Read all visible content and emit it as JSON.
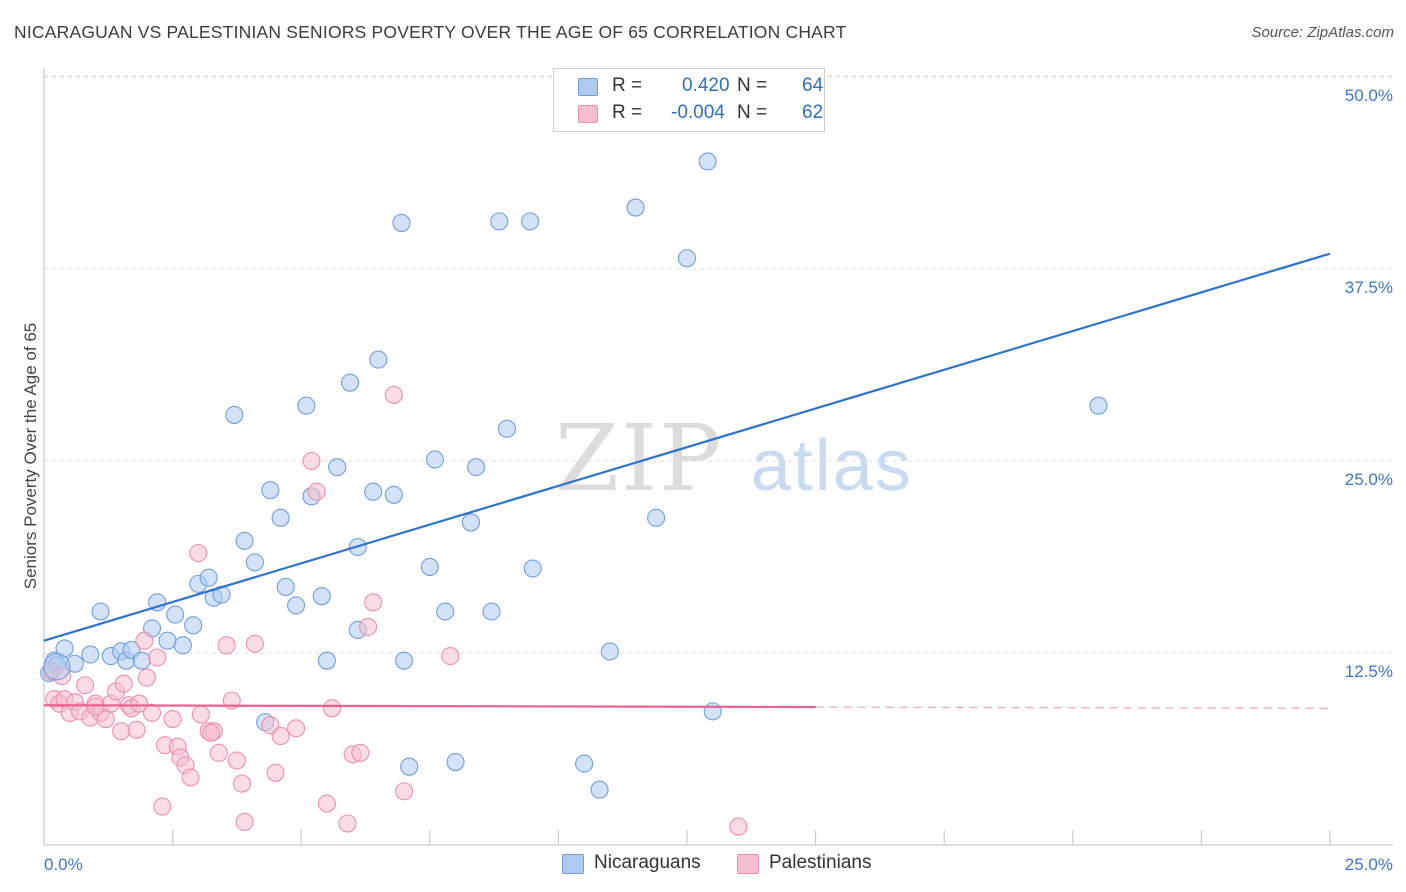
{
  "title": "NICARAGUAN VS PALESTINIAN SENIORS POVERTY OVER THE AGE OF 65 CORRELATION CHART",
  "source": "Source: ZipAtlas.com",
  "watermark": {
    "zip": "ZIP",
    "atlas": "atlas"
  },
  "colors": {
    "blue_fill": "#aecbef",
    "blue_stroke": "#6f9fdc",
    "blue_line": "#2f73d0",
    "pink_fill": "#f6bfd0",
    "pink_stroke": "#ec8fb0",
    "pink_line": "#e8628f",
    "grid": "#dcdcdc",
    "tick_label": "#3a78c9"
  },
  "legend": {
    "rows": [
      {
        "series": "Nicaraguans",
        "r_label": "R =",
        "r_value": "0.420",
        "n_label": "N =",
        "n_value": "64",
        "color": "#aecbef"
      },
      {
        "series": "Palestinians",
        "r_label": "R =",
        "r_value": "-0.004",
        "n_label": "N =",
        "n_value": "62",
        "color": "#f6bfd0"
      }
    ]
  },
  "bottom_legend": [
    {
      "label": "Nicaraguans",
      "color": "#aecbef"
    },
    {
      "label": "Palestinians",
      "color": "#f6bfd0"
    }
  ],
  "chart_data": {
    "type": "scatter",
    "title": "NICARAGUAN VS PALESTINIAN SENIORS POVERTY OVER THE AGE OF 65 CORRELATION CHART",
    "xlabel": "",
    "ylabel": "Seniors Poverty Over the Age of 65",
    "xlim": [
      0,
      25
    ],
    "ylim": [
      0,
      50
    ],
    "x_tick_labels": [
      "0.0%",
      "25.0%"
    ],
    "y_ticks": [
      12.5,
      25.0,
      37.5,
      50.0
    ],
    "y_tick_labels": [
      "12.5%",
      "25.0%",
      "37.5%",
      "50.0%"
    ],
    "grid": true,
    "legend_position": "top-center",
    "series": [
      {
        "name": "Nicaraguans",
        "r": 0.42,
        "n": 64,
        "trend": {
          "x": [
            0,
            25
          ],
          "y": [
            13.3,
            38.5
          ]
        },
        "points": [
          [
            0.2,
            12.0
          ],
          [
            0.25,
            11.7
          ],
          [
            0.4,
            12.8
          ],
          [
            0.6,
            11.8
          ],
          [
            0.9,
            12.4
          ],
          [
            1.1,
            15.2
          ],
          [
            1.3,
            12.3
          ],
          [
            1.5,
            12.6
          ],
          [
            1.6,
            12.0
          ],
          [
            1.7,
            12.7
          ],
          [
            1.9,
            12.0
          ],
          [
            2.1,
            14.1
          ],
          [
            2.2,
            15.8
          ],
          [
            2.4,
            13.3
          ],
          [
            2.55,
            15.0
          ],
          [
            2.7,
            13.0
          ],
          [
            2.9,
            14.3
          ],
          [
            3.0,
            17.0
          ],
          [
            3.2,
            17.4
          ],
          [
            3.3,
            16.1
          ],
          [
            3.45,
            16.3
          ],
          [
            3.7,
            28.0
          ],
          [
            3.9,
            19.8
          ],
          [
            4.1,
            18.4
          ],
          [
            4.3,
            8.0
          ],
          [
            4.4,
            23.1
          ],
          [
            4.6,
            21.3
          ],
          [
            4.7,
            16.8
          ],
          [
            4.9,
            15.6
          ],
          [
            5.1,
            28.6
          ],
          [
            5.2,
            22.7
          ],
          [
            5.4,
            16.2
          ],
          [
            5.5,
            12.0
          ],
          [
            5.7,
            24.6
          ],
          [
            5.95,
            30.1
          ],
          [
            6.1,
            19.4
          ],
          [
            6.1,
            14.0
          ],
          [
            6.4,
            23.0
          ],
          [
            6.5,
            31.6
          ],
          [
            6.8,
            22.8
          ],
          [
            6.95,
            40.5
          ],
          [
            7.0,
            12.0
          ],
          [
            7.1,
            5.1
          ],
          [
            7.5,
            18.1
          ],
          [
            7.6,
            25.1
          ],
          [
            7.8,
            15.2
          ],
          [
            8.0,
            5.4
          ],
          [
            8.3,
            21.0
          ],
          [
            8.4,
            24.6
          ],
          [
            8.7,
            15.2
          ],
          [
            8.85,
            40.6
          ],
          [
            9.0,
            27.1
          ],
          [
            9.45,
            40.6
          ],
          [
            9.5,
            18.0
          ],
          [
            10.5,
            5.3
          ],
          [
            10.8,
            3.6
          ],
          [
            11.0,
            12.6
          ],
          [
            11.5,
            41.5
          ],
          [
            11.9,
            21.3
          ],
          [
            12.5,
            38.2
          ],
          [
            12.9,
            44.5
          ],
          [
            13.0,
            8.7
          ],
          [
            20.5,
            28.6
          ],
          [
            0.1,
            11.2
          ]
        ]
      },
      {
        "name": "Palestinians",
        "r": -0.004,
        "n": 62,
        "trend": {
          "x": [
            0,
            25
          ],
          "y": [
            9.1,
            8.9
          ]
        },
        "points": [
          [
            0.15,
            11.3
          ],
          [
            0.2,
            9.5
          ],
          [
            0.3,
            9.2
          ],
          [
            0.4,
            9.5
          ],
          [
            0.5,
            8.6
          ],
          [
            0.6,
            9.3
          ],
          [
            0.7,
            8.7
          ],
          [
            0.8,
            10.4
          ],
          [
            0.9,
            8.3
          ],
          [
            1.0,
            9.2
          ],
          [
            1.1,
            8.6
          ],
          [
            1.2,
            8.2
          ],
          [
            1.3,
            9.2
          ],
          [
            1.4,
            10.0
          ],
          [
            1.5,
            7.4
          ],
          [
            1.55,
            10.5
          ],
          [
            1.65,
            9.1
          ],
          [
            1.7,
            8.9
          ],
          [
            1.8,
            7.5
          ],
          [
            1.85,
            9.2
          ],
          [
            1.95,
            13.3
          ],
          [
            2.0,
            10.9
          ],
          [
            2.1,
            8.6
          ],
          [
            2.2,
            12.2
          ],
          [
            2.3,
            2.5
          ],
          [
            2.35,
            6.5
          ],
          [
            2.5,
            8.2
          ],
          [
            2.6,
            6.4
          ],
          [
            2.65,
            5.7
          ],
          [
            2.75,
            5.2
          ],
          [
            2.85,
            4.4
          ],
          [
            3.0,
            19.0
          ],
          [
            3.05,
            8.5
          ],
          [
            3.2,
            7.4
          ],
          [
            3.3,
            7.4
          ],
          [
            3.4,
            6.0
          ],
          [
            3.55,
            13.0
          ],
          [
            3.65,
            9.4
          ],
          [
            3.75,
            5.5
          ],
          [
            3.85,
            4.0
          ],
          [
            3.9,
            1.5
          ],
          [
            4.1,
            13.1
          ],
          [
            4.4,
            7.8
          ],
          [
            4.5,
            4.7
          ],
          [
            4.6,
            7.1
          ],
          [
            4.9,
            7.6
          ],
          [
            5.2,
            25.0
          ],
          [
            5.3,
            23.0
          ],
          [
            5.5,
            2.7
          ],
          [
            5.6,
            8.9
          ],
          [
            5.9,
            1.4
          ],
          [
            6.0,
            5.9
          ],
          [
            6.15,
            6.0
          ],
          [
            6.3,
            14.2
          ],
          [
            6.4,
            15.8
          ],
          [
            6.8,
            29.3
          ],
          [
            7.0,
            3.5
          ],
          [
            7.9,
            12.3
          ],
          [
            13.5,
            1.2
          ],
          [
            1.0,
            9.0
          ],
          [
            0.35,
            11.0
          ],
          [
            3.25,
            7.3
          ]
        ]
      }
    ]
  }
}
